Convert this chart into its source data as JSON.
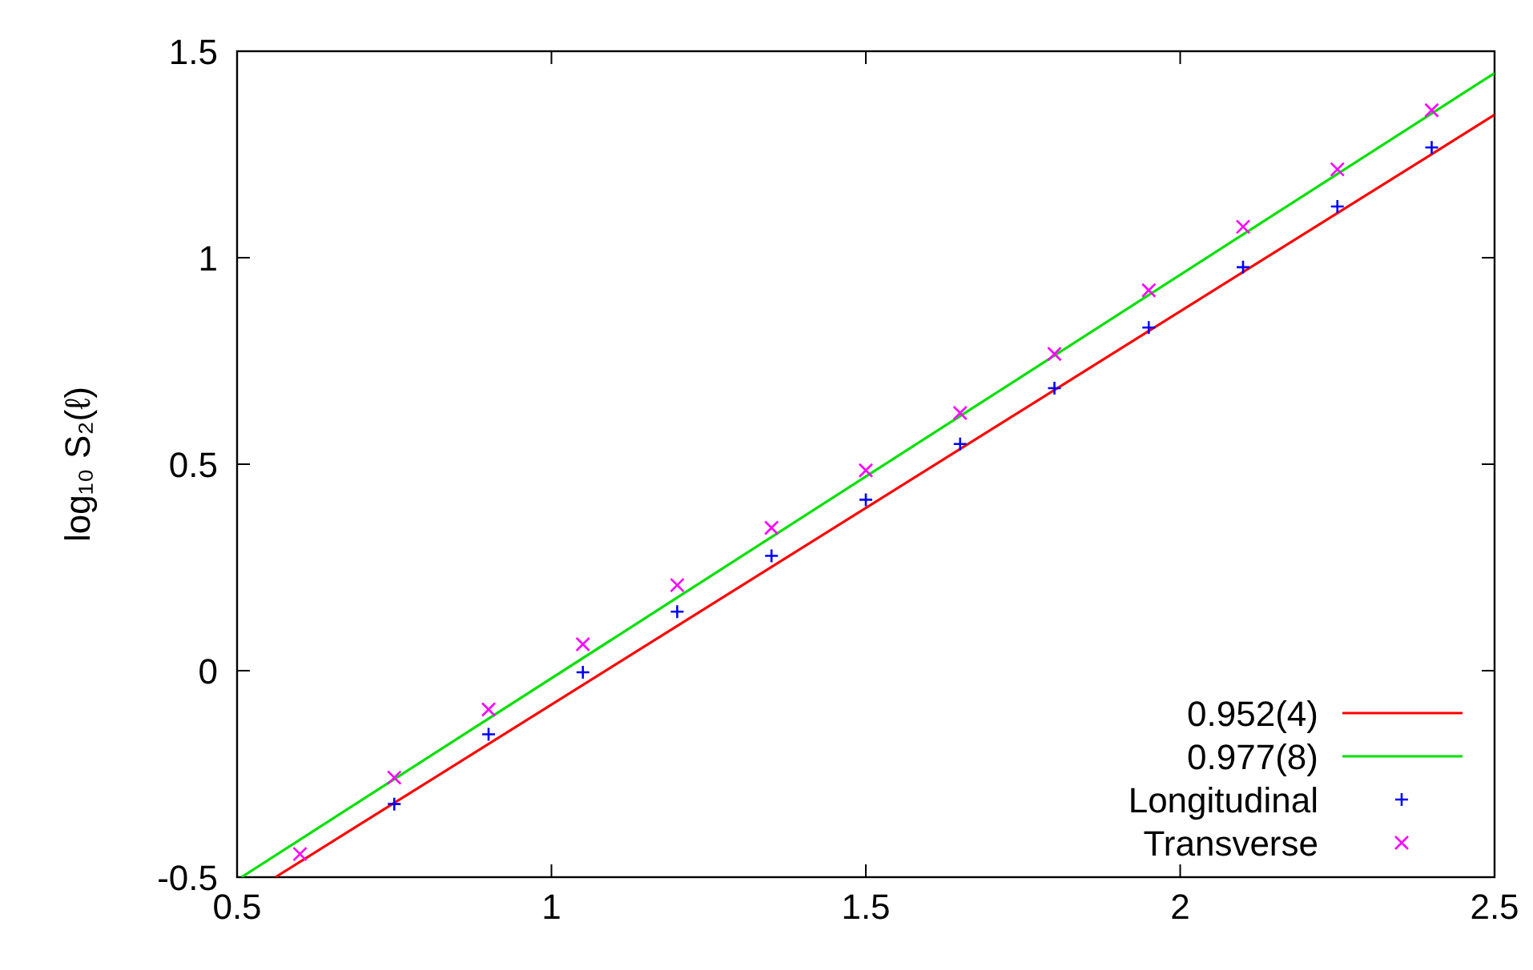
{
  "chart_data": {
    "type": "scatter",
    "ylabel": "log₁₀ S₂(ℓ)",
    "xlim": [
      0.5,
      2.5
    ],
    "ylim": [
      -0.5,
      1.5
    ],
    "xticks": [
      0.5,
      1,
      1.5,
      2,
      2.5
    ],
    "yticks": [
      -0.5,
      0,
      0.5,
      1,
      1.5
    ],
    "grid": false,
    "legend": "bottom right",
    "series": [
      {
        "name": "0.952(4)",
        "type": "line",
        "color": "#ff0000",
        "x": [
          0.561,
          2.5
        ],
        "values": [
          -0.5,
          1.346
        ]
      },
      {
        "name": "0.977(8)",
        "type": "line",
        "color": "#00e000",
        "x": [
          0.507,
          2.5
        ],
        "values": [
          -0.5,
          1.447
        ]
      },
      {
        "name": "Longitudinal",
        "color": "#0000ff",
        "marker": "plus",
        "x": [
          0.75,
          0.9,
          1.05,
          1.2,
          1.35,
          1.5,
          1.65,
          1.8,
          1.95,
          2.1,
          2.25,
          2.4
        ],
        "values": [
          -0.323,
          -0.154,
          -0.004,
          0.143,
          0.278,
          0.414,
          0.549,
          0.684,
          0.831,
          0.977,
          1.124,
          1.267
        ]
      },
      {
        "name": "Transverse",
        "color": "#ff00ff",
        "marker": "cross",
        "x": [
          0.6,
          0.75,
          0.9,
          1.05,
          1.2,
          1.35,
          1.5,
          1.65,
          1.8,
          1.95,
          2.1,
          2.25,
          2.4
        ],
        "values": [
          -0.444,
          -0.259,
          -0.094,
          0.064,
          0.207,
          0.346,
          0.485,
          0.624,
          0.767,
          0.921,
          1.075,
          1.214,
          1.357
        ]
      }
    ]
  }
}
